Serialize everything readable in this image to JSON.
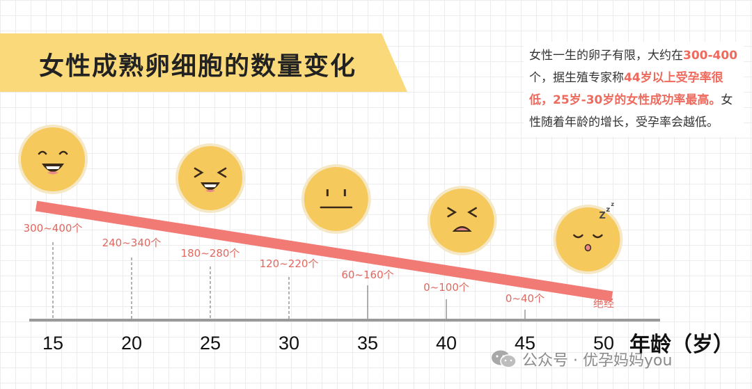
{
  "title": "女性成熟卵细胞的数量变化",
  "note": {
    "parts": [
      {
        "text": "女性一生的卵子有限，大约在",
        "hl": false
      },
      {
        "text": "300-400",
        "hl": true
      },
      {
        "text": "个，据生殖专家称",
        "hl": false
      },
      {
        "text": "44岁以上受孕率很低，25岁-30岁的女性成功率最高。",
        "hl": true
      },
      {
        "text": "女性随着年龄的增长，受孕率会越低。",
        "hl": false
      }
    ]
  },
  "chart_data": {
    "type": "line",
    "xlabel": "年龄（岁）",
    "x": [
      15,
      20,
      25,
      30,
      35,
      40,
      45,
      50
    ],
    "labels": [
      "300~400个",
      "240~340个",
      "180~280个",
      "120~220个",
      "60~160个",
      "0~100个",
      "0~40个",
      "绝经"
    ],
    "trend": {
      "from": 15,
      "to": 50
    },
    "faces": [
      {
        "x": 15,
        "mood": "laughing-face-icon"
      },
      {
        "x": 25,
        "mood": "grinning-squint-face-icon"
      },
      {
        "x": 33,
        "mood": "neutral-face-icon"
      },
      {
        "x": 41,
        "mood": "crying-face-icon"
      },
      {
        "x": 49,
        "mood": "sleeping-face-icon"
      }
    ]
  },
  "colors": {
    "trend": "#f27a75",
    "label": "#e0685f",
    "axis": "#9a9a9a",
    "face": "#f6c95d",
    "face_edge": "#f5e8c6",
    "banner": "#f9d97a"
  },
  "watermark": "公众号 · 优孕妈妈you"
}
